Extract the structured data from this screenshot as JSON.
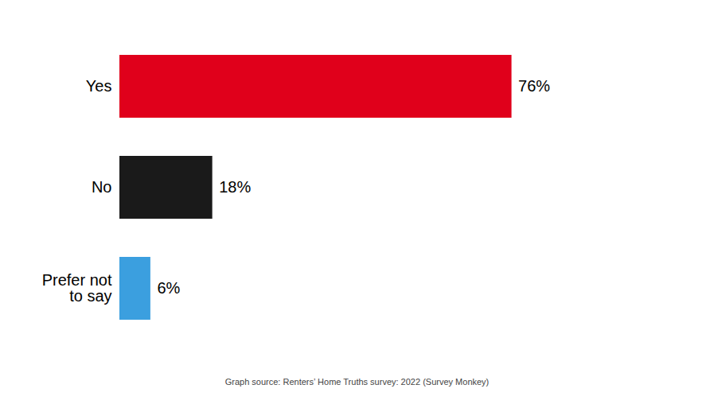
{
  "chart_data": {
    "type": "bar",
    "orientation": "horizontal",
    "categories": [
      "Yes",
      "No",
      "Prefer not\nto say"
    ],
    "values": [
      76,
      18,
      6
    ],
    "value_labels": [
      "76%",
      "18%",
      "6%"
    ],
    "colors": [
      "#e0001b",
      "#1a1a1a",
      "#3b9fdf"
    ],
    "xlim": [
      0,
      106
    ],
    "data_labels": true,
    "tick_labels": "y",
    "grid": false,
    "annotations": [
      "Graph source: Renters’ Home Truths survey: 2022 (Survey Monkey)"
    ]
  }
}
